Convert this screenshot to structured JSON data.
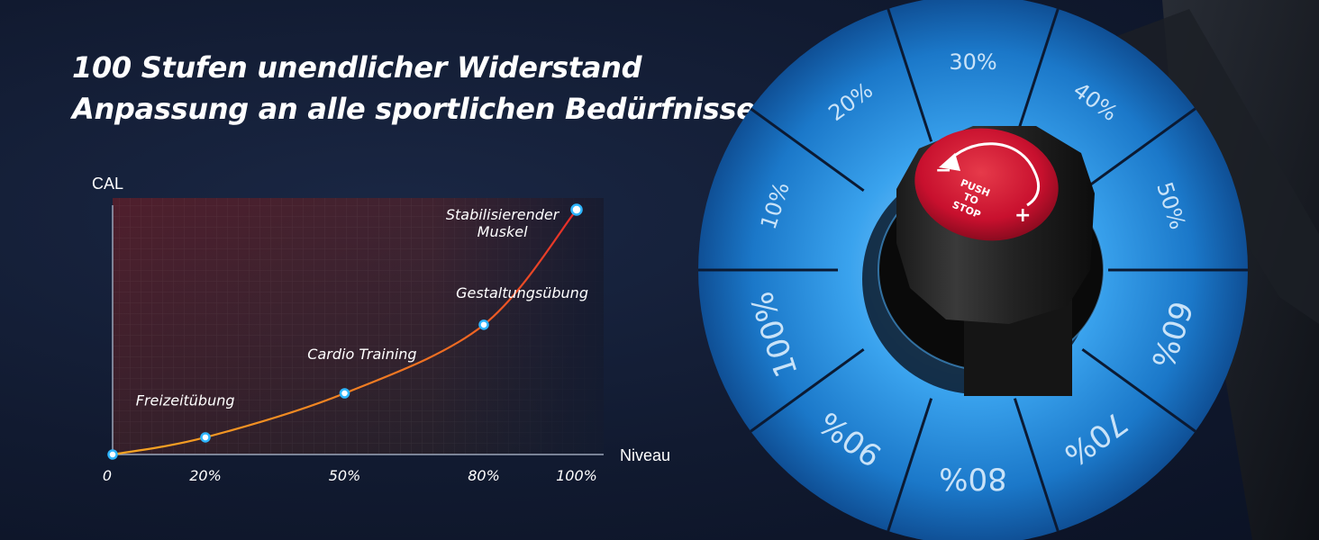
{
  "headline": {
    "line1": "100 Stufen unendlicher Widerstand",
    "line2": "Anpassung an alle sportlichen Bedürfnisse"
  },
  "colors": {
    "background": "#111a30",
    "curve_start": "#f5a623",
    "curve_end": "#e52a2a",
    "marker": "#2fb6ff",
    "dial_blue": "#1f8fe0",
    "knob_red": "#c8102e"
  },
  "chart_data": {
    "type": "line",
    "ylabel": "CAL",
    "xlabel": "Niveau",
    "x_tick_labels": [
      "0",
      "20%",
      "50%",
      "80%",
      "100%"
    ],
    "x": [
      0,
      20,
      50,
      80,
      100
    ],
    "y": [
      0,
      7,
      25,
      53,
      100
    ],
    "xlim": [
      0,
      100
    ],
    "ylim": [
      0,
      100
    ],
    "grid": true,
    "annotations": [
      {
        "text": "Freizeitübung",
        "x": 5,
        "y": 20
      },
      {
        "text": "Cardio Training",
        "x": 42,
        "y": 39
      },
      {
        "text": "Gestaltungsübung",
        "x": 74,
        "y": 64
      },
      {
        "text": "Stabilisierender",
        "x": 84,
        "y": 96
      },
      {
        "text": "Muskel",
        "x": 84,
        "y": 89
      }
    ]
  },
  "dial": {
    "segments": [
      "10%",
      "20%",
      "30%",
      "40%",
      "50%",
      "60%",
      "70%",
      "80%",
      "90%",
      "100%"
    ],
    "knob_text": [
      "PUSH",
      "TO",
      "STOP"
    ],
    "minus_sign": "−",
    "plus_sign": "+"
  }
}
